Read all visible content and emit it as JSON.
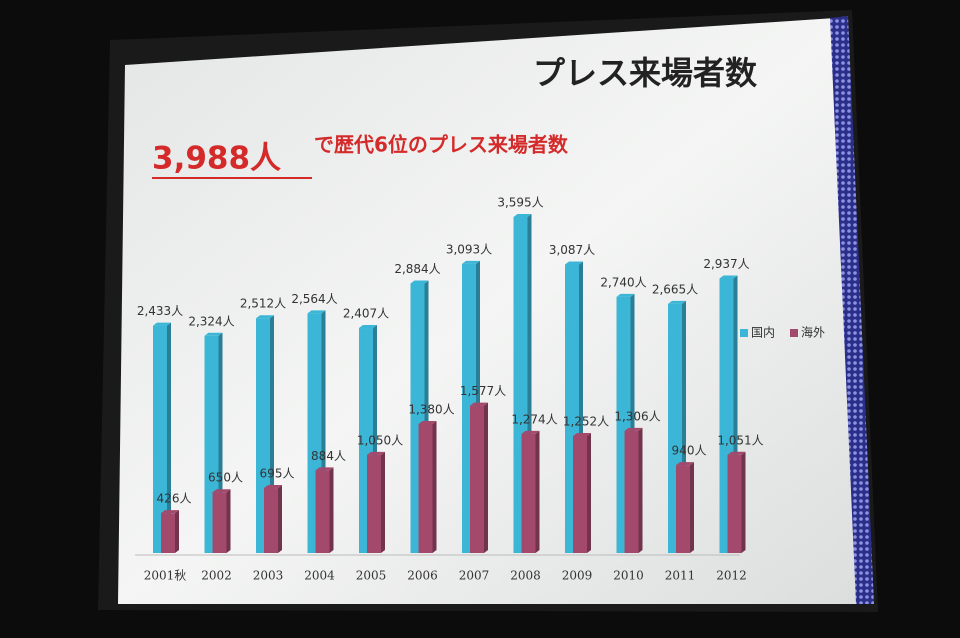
{
  "chart_data": {
    "type": "bar",
    "title": "プレス来場者数",
    "subtitle_emphasis": "3,988人",
    "subtitle": "で歴代6位のプレス来場者数",
    "categories": [
      "2001秋",
      "2002",
      "2003",
      "2004",
      "2005",
      "2006",
      "2007",
      "2008",
      "2009",
      "2010",
      "2011",
      "2012"
    ],
    "series": [
      {
        "name": "国内",
        "color": "#3cb6d6",
        "values": [
          2433,
          2324,
          2512,
          2564,
          2407,
          2884,
          3093,
          3595,
          3087,
          2740,
          2665,
          2937
        ],
        "value_labels": [
          "2,433人",
          "2,324人",
          "2,512人",
          "2,564人",
          "2,407人",
          "2,884人",
          "3,093人",
          "3,595人",
          "3,087人",
          "2,740人",
          "2,665人",
          "2,937人"
        ]
      },
      {
        "name": "海外",
        "color": "#a3496c",
        "values": [
          426,
          650,
          695,
          884,
          1050,
          1380,
          1577,
          1274,
          1252,
          1306,
          940,
          1051
        ],
        "value_labels": [
          "426人",
          "650人",
          "695人",
          "884人",
          "1,050人",
          "1,380人",
          "1,577人",
          "1,274人",
          "1,252人",
          "1,306人",
          "940人",
          "1,051人"
        ]
      }
    ],
    "legend": "right"
  }
}
